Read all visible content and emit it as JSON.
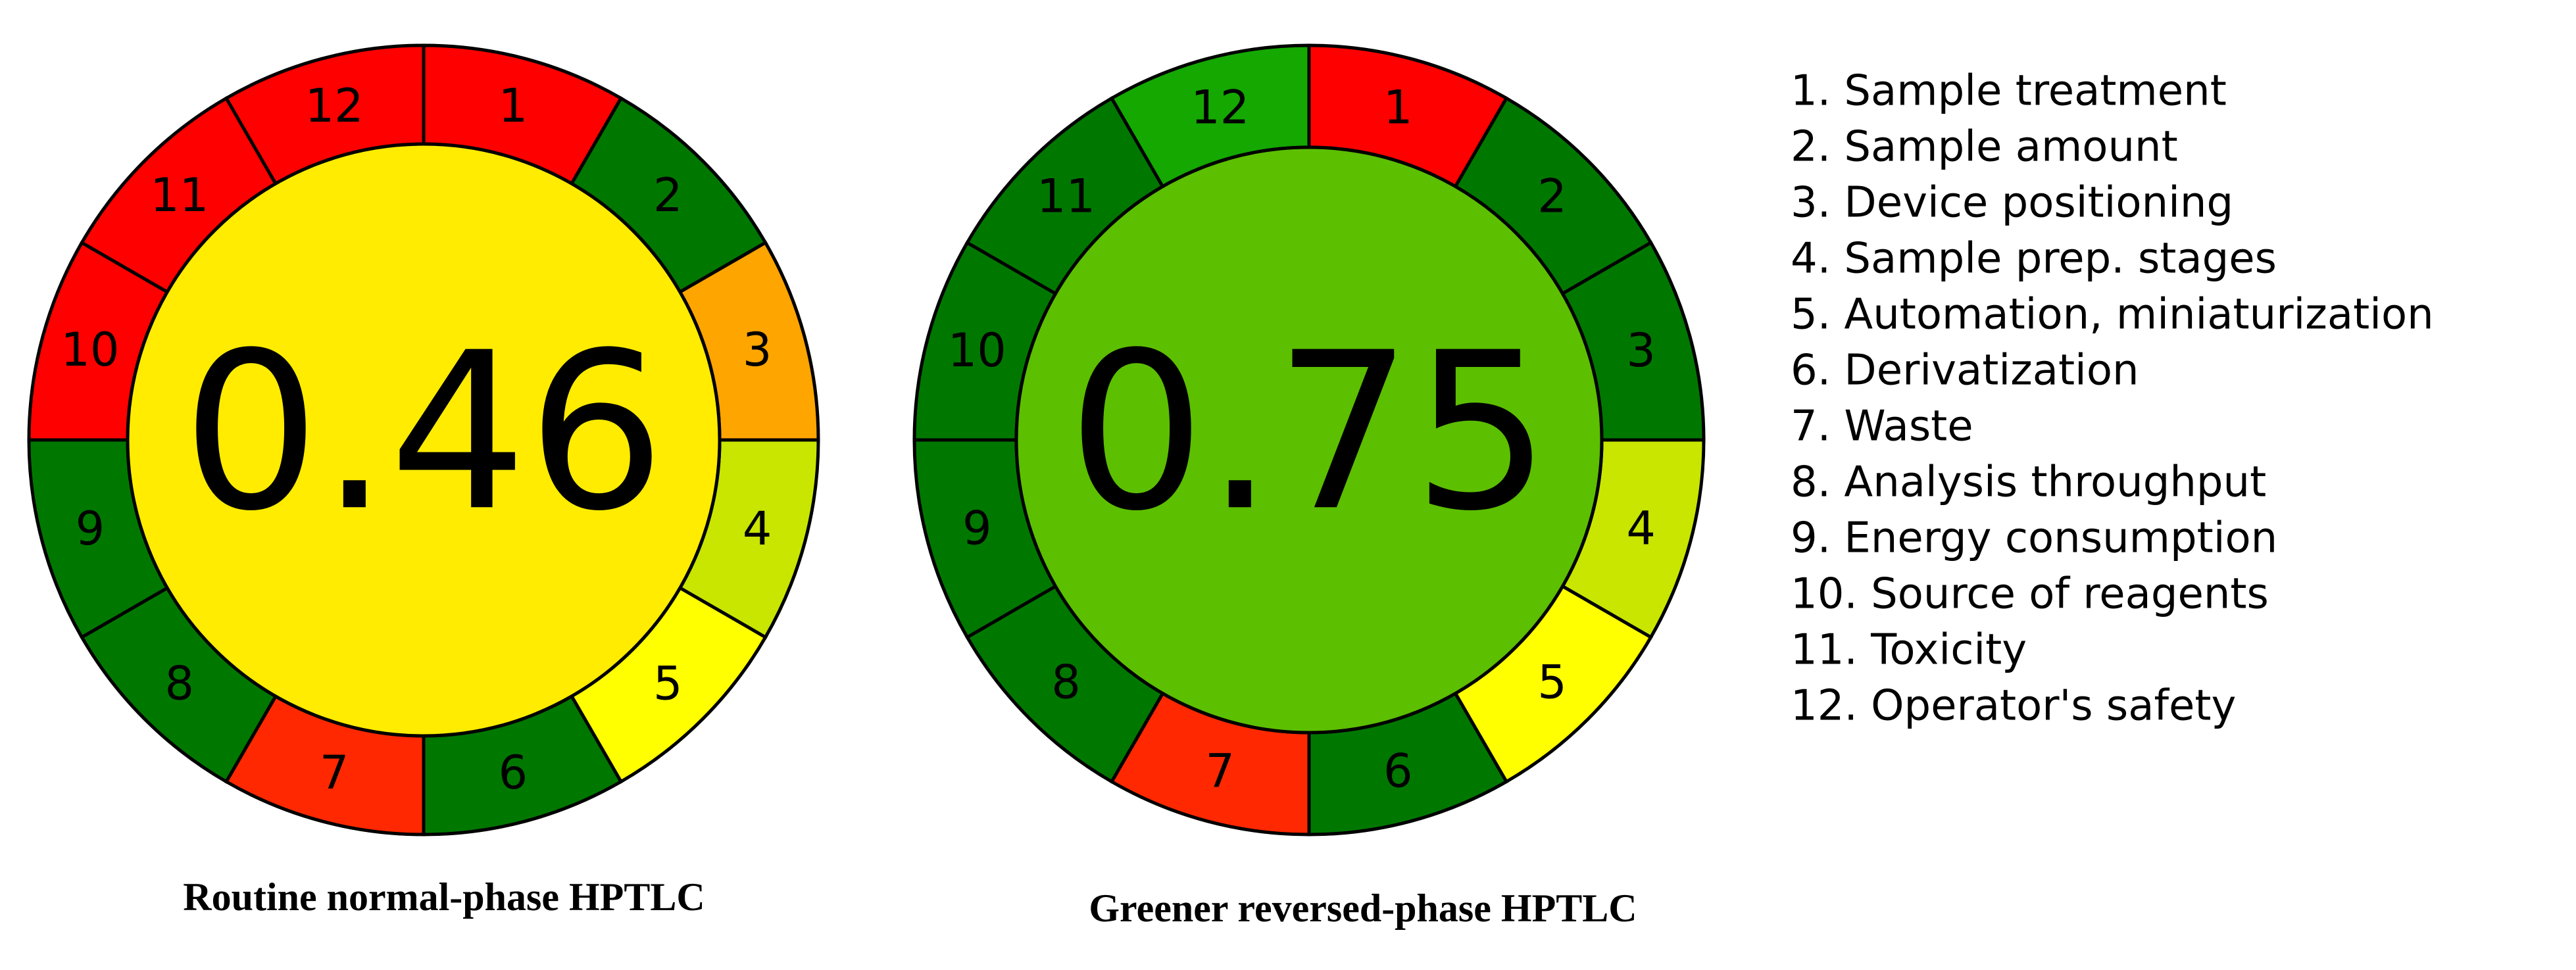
{
  "pictograms": [
    {
      "score": 0.46,
      "score_color": "#ffec00",
      "caption": "Routine normal-phase HPTLC",
      "segments": [
        {
          "label": "1",
          "color": "#ff0000"
        },
        {
          "label": "2",
          "color": "#007800"
        },
        {
          "label": "3",
          "color": "#ffa500"
        },
        {
          "label": "4",
          "color": "#c8e600"
        },
        {
          "label": "5",
          "color": "#ffff00"
        },
        {
          "label": "6",
          "color": "#007800"
        },
        {
          "label": "7",
          "color": "#ff2800"
        },
        {
          "label": "8",
          "color": "#007800"
        },
        {
          "label": "9",
          "color": "#007800"
        },
        {
          "label": "10",
          "color": "#ff0000"
        },
        {
          "label": "11",
          "color": "#ff0000"
        },
        {
          "label": "12",
          "color": "#ff0000"
        }
      ]
    },
    {
      "score": 0.75,
      "score_color": "#5cbf00",
      "caption": "Greener reversed-phase HPTLC",
      "segments": [
        {
          "label": "1",
          "color": "#ff0000"
        },
        {
          "label": "2",
          "color": "#007800"
        },
        {
          "label": "3",
          "color": "#007800"
        },
        {
          "label": "4",
          "color": "#c8e600"
        },
        {
          "label": "5",
          "color": "#ffff00"
        },
        {
          "label": "6",
          "color": "#007800"
        },
        {
          "label": "7",
          "color": "#ff2800"
        },
        {
          "label": "8",
          "color": "#007800"
        },
        {
          "label": "9",
          "color": "#007800"
        },
        {
          "label": "10",
          "color": "#007800"
        },
        {
          "label": "11",
          "color": "#007800"
        },
        {
          "label": "12",
          "color": "#14a800"
        }
      ]
    }
  ],
  "legend": [
    "1. Sample treatment",
    "2. Sample amount",
    "3. Device positioning",
    "4. Sample prep. stages",
    "5. Automation, miniaturization",
    "6. Derivatization",
    "7. Waste",
    "8. Analysis throughput",
    "9. Energy consumption",
    "10. Source of reagents",
    "11. Toxicity",
    "12. Operator's safety"
  ]
}
